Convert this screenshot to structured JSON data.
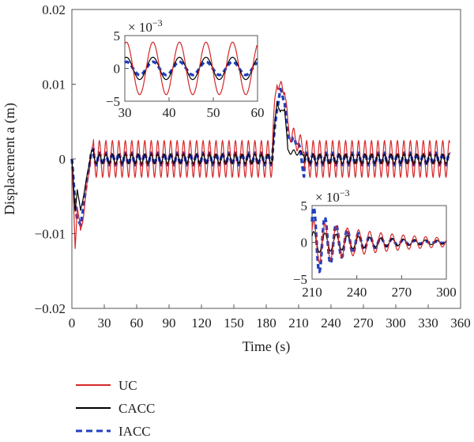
{
  "chart_data": [
    {
      "id": "main",
      "type": "line",
      "title": "",
      "xlabel": "Time (s)",
      "ylabel": "Displacement a (m)",
      "xlim": [
        0,
        360
      ],
      "ylim": [
        -0.02,
        0.02
      ],
      "xticks": [
        0,
        30,
        60,
        90,
        120,
        150,
        180,
        210,
        240,
        270,
        300,
        330,
        360
      ],
      "yticks": [
        -0.02,
        -0.01,
        0,
        0.01,
        0.02
      ],
      "ytick_labels": [
        "−0.02",
        "−0.01",
        "0",
        "0.01",
        "0.02"
      ],
      "grid": false,
      "series": [
        {
          "name": "UC",
          "color": "#d62728",
          "style": "solid",
          "x": [
            0,
            3,
            5,
            8,
            12,
            18,
            30,
            60,
            90,
            120,
            150,
            180,
            186,
            190,
            193,
            197,
            200,
            210,
            240,
            270,
            300,
            330,
            350
          ],
          "y": [
            0,
            -0.012,
            -0.006,
            -0.01,
            -0.006,
            0.001,
            0.004,
            0.003,
            0.003,
            0.003,
            0.003,
            0.002,
            0.003,
            0.011,
            0.009,
            0.01,
            0.004,
            0.002,
            0.002,
            0.002,
            0.002,
            0.002,
            0.001
          ]
        },
        {
          "name": "CACC",
          "color": "#000000",
          "style": "solid",
          "x": [
            0,
            3,
            5,
            8,
            12,
            18,
            30,
            60,
            90,
            120,
            150,
            180,
            186,
            190,
            193,
            197,
            200,
            210,
            240,
            270,
            300,
            330,
            350
          ],
          "y": [
            0,
            -0.007,
            -0.004,
            -0.007,
            -0.004,
            0.001,
            0.001,
            0.0008,
            0.0008,
            0.0008,
            0.0008,
            0.0005,
            0.001,
            0.008,
            0.006,
            0.007,
            0.001,
            0.0008,
            0.0008,
            0.0008,
            0.0008,
            0.0008,
            0.0005
          ]
        },
        {
          "name": "IACC",
          "color": "#1f3fbf",
          "style": "dashed",
          "x": [
            0,
            3,
            5,
            8,
            12,
            18,
            30,
            60,
            90,
            120,
            150,
            180,
            186,
            190,
            193,
            197,
            200,
            210,
            220,
            230,
            240,
            270,
            300,
            330,
            350
          ],
          "y": [
            0,
            -0.006,
            -0.008,
            -0.009,
            -0.005,
            0.001,
            0.001,
            0.001,
            0.001,
            0.001,
            0.001,
            0.0005,
            0.001,
            0.007,
            0.009,
            0.008,
            0.003,
            0.002,
            -0.006,
            0.003,
            0.001,
            0.001,
            0.001,
            0.001,
            0.0005
          ]
        }
      ]
    },
    {
      "id": "inset1",
      "type": "line",
      "xlim": [
        30,
        60
      ],
      "ylim": [
        -5,
        5
      ],
      "xticks": [
        30,
        40,
        50,
        60
      ],
      "yticks": [
        -5,
        0,
        5
      ],
      "ytick_labels": [
        "−5",
        "0",
        "5"
      ],
      "scale_label": "× 10",
      "scale_exponent": "−3",
      "series": [
        {
          "name": "UC",
          "amplitude": 4.0,
          "period": 6.0
        },
        {
          "name": "CACC",
          "amplitude": 1.7,
          "period": 6.0
        },
        {
          "name": "IACC",
          "amplitude": 1.0,
          "period": 6.0
        }
      ]
    },
    {
      "id": "inset2",
      "type": "line",
      "xlim": [
        210,
        300
      ],
      "ylim": [
        -5,
        5
      ],
      "xticks": [
        210,
        240,
        270,
        300
      ],
      "yticks": [
        -5,
        0,
        5
      ],
      "ytick_labels": [
        "−5",
        "0",
        "5"
      ],
      "scale_label": "× 10",
      "scale_exponent": "−3",
      "series": [
        {
          "name": "UC",
          "amplitude": 3.0,
          "period": 7.5,
          "decay": 0.018
        },
        {
          "name": "CACC",
          "amplitude": 1.5,
          "period": 7.5,
          "decay": 0.02
        },
        {
          "name": "IACC",
          "amplitude": 5.0,
          "period": 7.5,
          "decay": 0.045
        }
      ]
    }
  ],
  "legend": {
    "placement": "bottom-left",
    "items": [
      {
        "label": "UC",
        "color": "#d62728",
        "style": "solid"
      },
      {
        "label": "CACC",
        "color": "#000000",
        "style": "solid"
      },
      {
        "label": "IACC",
        "color": "#1f3fbf",
        "style": "dashed"
      }
    ]
  }
}
